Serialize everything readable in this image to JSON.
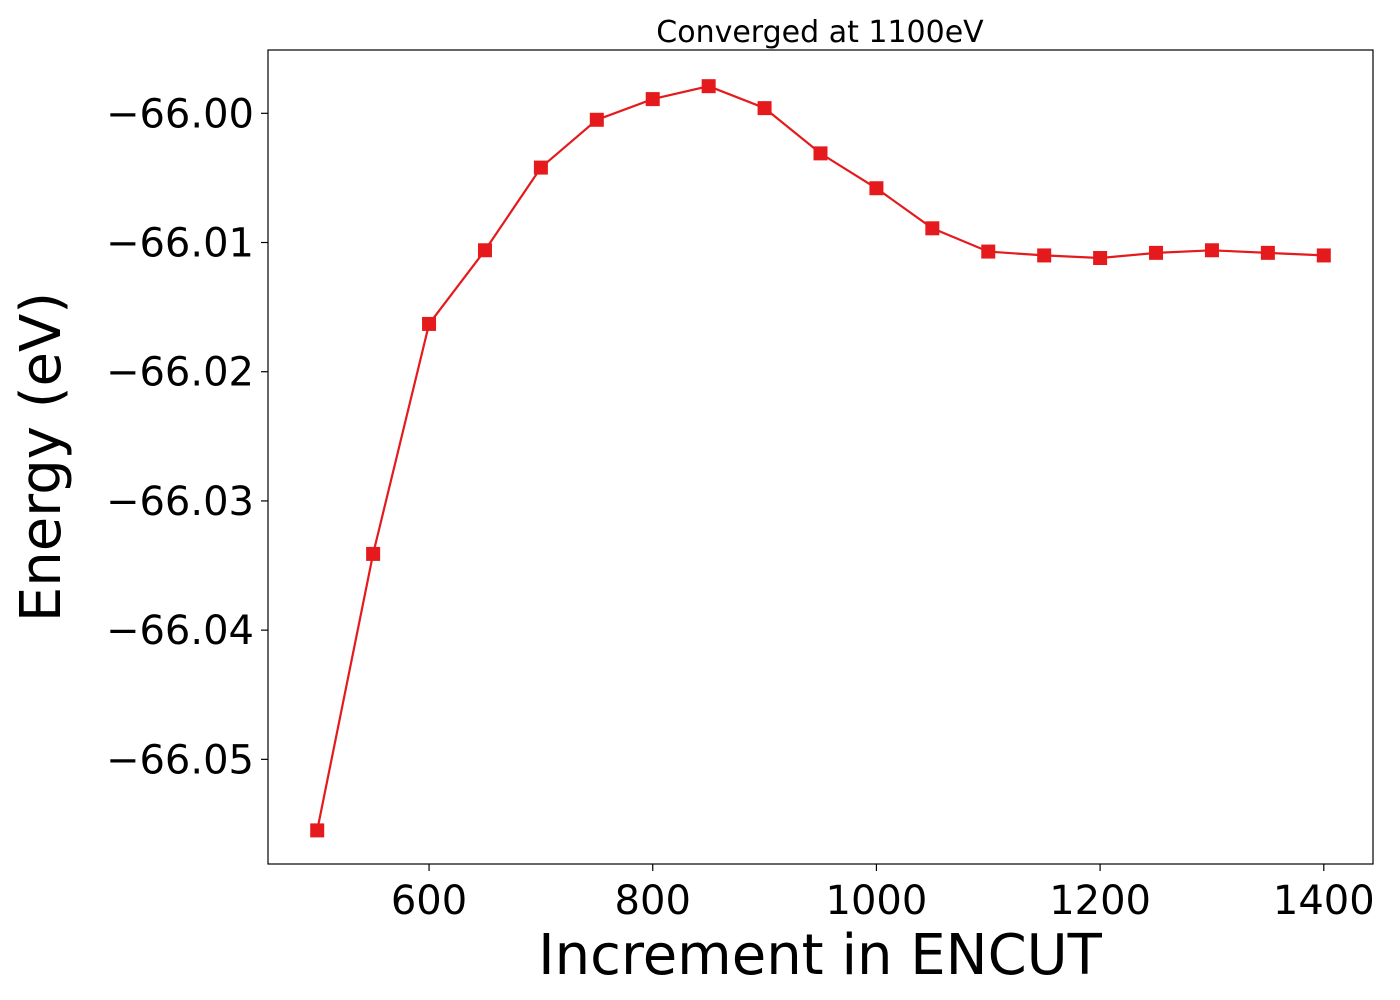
{
  "chart_data": {
    "type": "line",
    "title": "Converged at 1100eV",
    "xlabel": "Increment in ENCUT",
    "ylabel": "Energy (eV)",
    "x": [
      500,
      550,
      600,
      650,
      700,
      750,
      800,
      850,
      900,
      950,
      1000,
      1050,
      1100,
      1150,
      1200,
      1250,
      1300,
      1350,
      1400
    ],
    "series": [
      {
        "values": [
          -66.0555,
          -66.0341,
          -66.0163,
          -66.0106,
          -66.0042,
          -66.0005,
          -65.9989,
          -65.9979,
          -65.9996,
          -66.0031,
          -66.0058,
          -66.0089,
          -66.0107,
          -66.011,
          -66.0112,
          -66.0108,
          -66.0106,
          -66.0108,
          -66.011
        ],
        "color": "#e41a1c",
        "marker": "square"
      }
    ],
    "xticks": [
      600,
      800,
      1000,
      1200,
      1400
    ],
    "xtick_labels": [
      "600",
      "800",
      "1000",
      "1200",
      "1400"
    ],
    "yticks": [
      -66.05,
      -66.04,
      -66.03,
      -66.02,
      -66.01,
      -66.0
    ],
    "ytick_labels": [
      "−66.05",
      "−66.04",
      "−66.03",
      "−66.02",
      "−66.01",
      "−66.00"
    ],
    "xlim": [
      456,
      1444
    ],
    "ylim": [
      -66.0581,
      -65.9951
    ],
    "grid": false,
    "legend": "none"
  }
}
